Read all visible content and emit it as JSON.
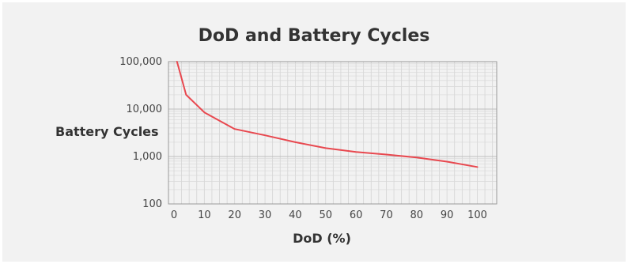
{
  "chart_data": {
    "type": "line",
    "title": "DoD and Battery Cycles",
    "xlabel": "DoD (%)",
    "ylabel": "Battery Cycles",
    "y_scale": "log",
    "xlim": [
      0,
      105
    ],
    "ylim": [
      100,
      100000
    ],
    "x_ticks": [
      "0",
      "10",
      "20",
      "30",
      "40",
      "50",
      "60",
      "70",
      "80",
      "90",
      "100"
    ],
    "y_ticks": [
      "100",
      "1,000",
      "10,000",
      "100,000"
    ],
    "grid": true,
    "line_color": "#e8484f",
    "series": [
      {
        "x": [
          1,
          4,
          10,
          20,
          30,
          40,
          50,
          60,
          70,
          80,
          90,
          100
        ],
        "y": [
          100000,
          20000,
          8500,
          3800,
          2800,
          2000,
          1500,
          1250,
          1100,
          950,
          780,
          600
        ]
      }
    ]
  }
}
